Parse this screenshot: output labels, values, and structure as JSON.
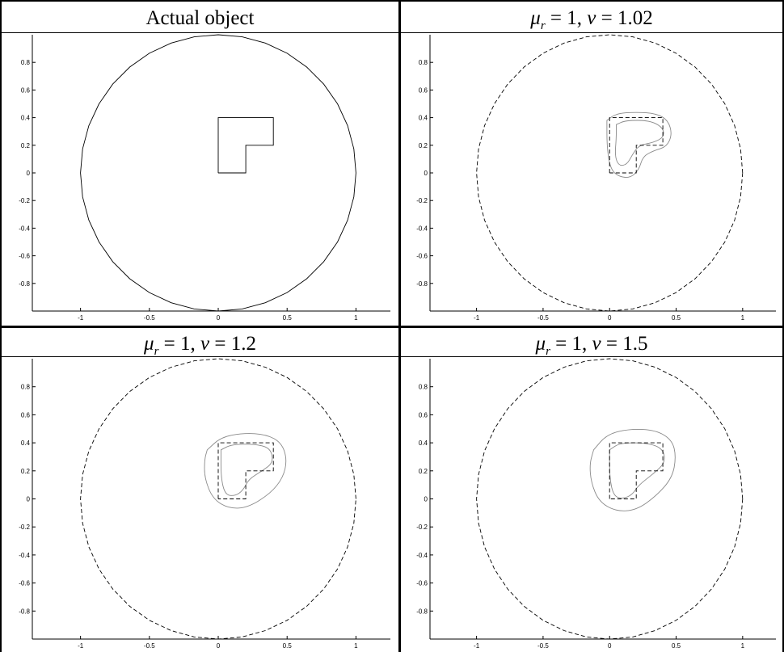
{
  "figure": {
    "panels": [
      {
        "title_text": "Actual object",
        "title_math": null
      },
      {
        "title_text": null,
        "title_math": {
          "mu_sub": "r",
          "mu_val": "1",
          "nu_val": "1.02"
        }
      },
      {
        "title_text": null,
        "title_math": {
          "mu_sub": "r",
          "mu_val": "1",
          "nu_val": "1.2"
        }
      },
      {
        "title_text": null,
        "title_math": {
          "mu_sub": "r",
          "mu_val": "1",
          "nu_val": "1.5"
        }
      }
    ]
  },
  "chart_data": [
    {
      "type": "line",
      "title": "Actual object",
      "xlim": [
        -1.35,
        1.25
      ],
      "ylim": [
        -1.0,
        1.0
      ],
      "x_ticks": [
        "-1",
        "-0.5",
        "0",
        "0.5",
        "1"
      ],
      "y_ticks": [
        "0.8",
        "0.6",
        "0.4",
        "0.2",
        "0",
        "-0.2",
        "-0.4",
        "-0.6",
        "-0.8"
      ],
      "grid": false,
      "boundary": {
        "shape": "circle",
        "center": [
          0,
          0
        ],
        "radius": 1,
        "style": "solid"
      },
      "object": {
        "shape": "L",
        "vertices": [
          [
            0,
            0
          ],
          [
            0,
            0.4
          ],
          [
            0.4,
            0.4
          ],
          [
            0.4,
            0.2
          ],
          [
            0.2,
            0.2
          ],
          [
            0.2,
            0
          ],
          [
            0,
            0
          ]
        ],
        "style": "solid"
      },
      "reconstruction_contours": []
    },
    {
      "type": "line",
      "title": "μ_r = 1, ν = 1.02",
      "xlim": [
        -1.35,
        1.25
      ],
      "ylim": [
        -1.0,
        1.0
      ],
      "x_ticks": [
        "-1",
        "-0.5",
        "0",
        "0.5",
        "1"
      ],
      "y_ticks": [
        "0.8",
        "0.6",
        "0.4",
        "0.2",
        "0",
        "-0.2",
        "-0.4",
        "-0.6",
        "-0.8"
      ],
      "grid": false,
      "boundary": {
        "shape": "circle",
        "center": [
          0,
          0
        ],
        "radius": 1,
        "style": "dashed"
      },
      "object": {
        "shape": "L",
        "vertices": [
          [
            0,
            0
          ],
          [
            0,
            0.4
          ],
          [
            0.4,
            0.4
          ],
          [
            0.4,
            0.2
          ],
          [
            0.2,
            0.2
          ],
          [
            0.2,
            0
          ],
          [
            0,
            0
          ]
        ],
        "style": "dashed"
      },
      "reconstruction_contours": [
        {
          "level": "outer",
          "points": [
            [
              -0.02,
              0.38
            ],
            [
              0.05,
              0.43
            ],
            [
              0.2,
              0.44
            ],
            [
              0.35,
              0.43
            ],
            [
              0.44,
              0.38
            ],
            [
              0.47,
              0.28
            ],
            [
              0.43,
              0.19
            ],
            [
              0.33,
              0.16
            ],
            [
              0.25,
              0.12
            ],
            [
              0.22,
              0.02
            ],
            [
              0.15,
              -0.04
            ],
            [
              0.05,
              -0.02
            ],
            [
              0,
              0.05
            ],
            [
              -0.02,
              0.2
            ],
            [
              -0.02,
              0.38
            ]
          ]
        },
        {
          "level": "inner",
          "points": [
            [
              0.05,
              0.35
            ],
            [
              0.12,
              0.38
            ],
            [
              0.3,
              0.38
            ],
            [
              0.4,
              0.33
            ],
            [
              0.41,
              0.26
            ],
            [
              0.33,
              0.22
            ],
            [
              0.22,
              0.2
            ],
            [
              0.17,
              0.13
            ],
            [
              0.13,
              0.06
            ],
            [
              0.07,
              0.05
            ],
            [
              0.04,
              0.12
            ],
            [
              0.05,
              0.25
            ],
            [
              0.05,
              0.35
            ]
          ]
        }
      ]
    },
    {
      "type": "line",
      "title": "μ_r = 1, ν = 1.2",
      "xlim": [
        -1.35,
        1.25
      ],
      "ylim": [
        -1.0,
        1.0
      ],
      "x_ticks": [
        "-1",
        "-0.5",
        "0",
        "0.5",
        "1"
      ],
      "y_ticks": [
        "0.8",
        "0.6",
        "0.4",
        "0.2",
        "0",
        "-0.2",
        "-0.4",
        "-0.6",
        "-0.8"
      ],
      "grid": false,
      "boundary": {
        "shape": "circle",
        "center": [
          0,
          0
        ],
        "radius": 1,
        "style": "dashed"
      },
      "object": {
        "shape": "L",
        "vertices": [
          [
            0,
            0
          ],
          [
            0,
            0.4
          ],
          [
            0.4,
            0.4
          ],
          [
            0.4,
            0.2
          ],
          [
            0.2,
            0.2
          ],
          [
            0.2,
            0
          ],
          [
            0,
            0
          ]
        ],
        "style": "dashed"
      },
      "reconstruction_contours": [
        {
          "level": "outer",
          "points": [
            [
              -0.08,
              0.35
            ],
            [
              0.02,
              0.44
            ],
            [
              0.18,
              0.47
            ],
            [
              0.35,
              0.46
            ],
            [
              0.46,
              0.4
            ],
            [
              0.5,
              0.28
            ],
            [
              0.47,
              0.15
            ],
            [
              0.38,
              0.04
            ],
            [
              0.22,
              -0.06
            ],
            [
              0.08,
              -0.07
            ],
            [
              -0.04,
              0
            ],
            [
              -0.1,
              0.15
            ],
            [
              -0.1,
              0.28
            ],
            [
              -0.08,
              0.35
            ]
          ]
        },
        {
          "level": "inner",
          "points": [
            [
              0.02,
              0.35
            ],
            [
              0.1,
              0.39
            ],
            [
              0.28,
              0.39
            ],
            [
              0.38,
              0.36
            ],
            [
              0.4,
              0.26
            ],
            [
              0.32,
              0.2
            ],
            [
              0.22,
              0.14
            ],
            [
              0.18,
              0.06
            ],
            [
              0.12,
              0.02
            ],
            [
              0.05,
              0.03
            ],
            [
              0.02,
              0.15
            ],
            [
              0.02,
              0.35
            ]
          ]
        }
      ]
    },
    {
      "type": "line",
      "title": "μ_r = 1, ν = 1.5",
      "xlim": [
        -1.35,
        1.25
      ],
      "ylim": [
        -1.0,
        1.0
      ],
      "x_ticks": [
        "-1",
        "-0.5",
        "0",
        "0.5",
        "1"
      ],
      "y_ticks": [
        "0.8",
        "0.6",
        "0.4",
        "0.2",
        "0",
        "-0.2",
        "-0.4",
        "-0.6",
        "-0.8"
      ],
      "grid": false,
      "boundary": {
        "shape": "circle",
        "center": [
          0,
          0
        ],
        "radius": 1,
        "style": "dashed"
      },
      "object": {
        "shape": "L",
        "vertices": [
          [
            0,
            0
          ],
          [
            0,
            0.4
          ],
          [
            0.4,
            0.4
          ],
          [
            0.4,
            0.2
          ],
          [
            0.2,
            0.2
          ],
          [
            0.2,
            0
          ],
          [
            0,
            0
          ]
        ],
        "style": "dashed"
      },
      "reconstruction_contours": [
        {
          "level": "outer",
          "points": [
            [
              -0.12,
              0.35
            ],
            [
              -0.02,
              0.46
            ],
            [
              0.15,
              0.5
            ],
            [
              0.35,
              0.49
            ],
            [
              0.47,
              0.42
            ],
            [
              0.5,
              0.3
            ],
            [
              0.47,
              0.15
            ],
            [
              0.35,
              0.02
            ],
            [
              0.2,
              -0.08
            ],
            [
              0.05,
              -0.09
            ],
            [
              -0.08,
              -0.02
            ],
            [
              -0.14,
              0.12
            ],
            [
              -0.15,
              0.25
            ],
            [
              -0.12,
              0.35
            ]
          ]
        },
        {
          "level": "inner",
          "points": [
            [
              0,
              0.35
            ],
            [
              0.08,
              0.4
            ],
            [
              0.28,
              0.4
            ],
            [
              0.4,
              0.36
            ],
            [
              0.42,
              0.26
            ],
            [
              0.33,
              0.18
            ],
            [
              0.22,
              0.1
            ],
            [
              0.17,
              0.03
            ],
            [
              0.1,
              0.0
            ],
            [
              0.03,
              0.02
            ],
            [
              0,
              0.15
            ],
            [
              0,
              0.35
            ]
          ]
        }
      ]
    }
  ]
}
